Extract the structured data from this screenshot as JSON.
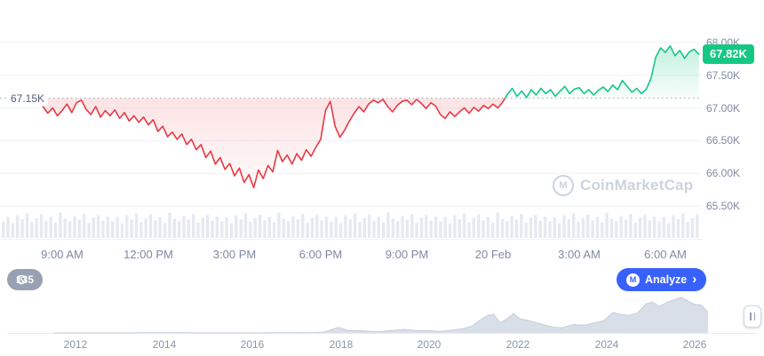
{
  "colors": {
    "up": "#16c784",
    "down": "#ea3943",
    "analyze_blue": "#3861fb",
    "axis_text": "#7f8aa0",
    "watermark_gray": "#ccd3de",
    "volume_bar": "#e5eaf1",
    "brush_fill": "#d9dfe9"
  },
  "icons": {
    "cmc_logo_letter": "M"
  },
  "price_chart": {
    "current_price_badge": "67.82K",
    "reference_price_label": "67.15K",
    "watermark_text": "CoinMarketCap"
  },
  "controls": {
    "history_badge": "135",
    "analyze_button": "Analyze",
    "analyze_chevron": "›"
  },
  "chart_data": [
    {
      "name": "intraday-price",
      "type": "line",
      "unit": "K USD",
      "reference_value": 67.15,
      "last_value": 67.82,
      "ylim": [
        65.5,
        68.0
      ],
      "grid": true,
      "y_ticks": [
        {
          "value": 68.0,
          "label": "68.00K"
        },
        {
          "value": 67.5,
          "label": "67.50K"
        },
        {
          "value": 67.0,
          "label": "67.00K"
        },
        {
          "value": 66.5,
          "label": "66.50K"
        },
        {
          "value": 66.0,
          "label": "66.00K"
        },
        {
          "value": 65.5,
          "label": "65.50K"
        }
      ],
      "x_ticks": [
        {
          "hour": 9,
          "label": "9:00 AM"
        },
        {
          "hour": 12,
          "label": "12:00 PM"
        },
        {
          "hour": 15,
          "label": "3:00 PM"
        },
        {
          "hour": 18,
          "label": "6:00 PM"
        },
        {
          "hour": 21,
          "label": "9:00 PM"
        },
        {
          "hour": 24,
          "label": "20 Feb"
        },
        {
          "hour": 27,
          "label": "3:00 AM"
        },
        {
          "hour": 30,
          "label": "6:00 AM"
        }
      ],
      "x_start_hour": 8.3333,
      "x_step_hours": 0.16667,
      "values": [
        67.02,
        66.92,
        67.0,
        66.88,
        66.96,
        67.06,
        66.93,
        67.08,
        67.12,
        66.98,
        66.9,
        67.02,
        66.86,
        66.96,
        66.88,
        66.97,
        66.84,
        66.93,
        66.8,
        66.88,
        66.78,
        66.86,
        66.74,
        66.82,
        66.64,
        66.72,
        66.56,
        66.63,
        66.52,
        66.6,
        66.44,
        66.52,
        66.36,
        66.44,
        66.24,
        66.34,
        66.14,
        66.24,
        66.06,
        66.15,
        65.96,
        66.08,
        65.86,
        65.98,
        65.78,
        66.05,
        65.92,
        66.12,
        66.02,
        66.35,
        66.18,
        66.28,
        66.14,
        66.3,
        66.2,
        66.36,
        66.26,
        66.4,
        66.52,
        66.96,
        67.1,
        66.72,
        66.55,
        66.66,
        66.8,
        66.92,
        67.02,
        66.94,
        67.06,
        67.12,
        67.08,
        67.13,
        67.02,
        66.94,
        67.04,
        67.1,
        67.12,
        67.05,
        67.13,
        67.07,
        66.99,
        67.08,
        67.03,
        66.9,
        66.84,
        66.94,
        66.87,
        66.94,
        67.0,
        66.92,
        67.01,
        66.95,
        67.04,
        66.99,
        67.06,
        67.0,
        67.09,
        67.21,
        67.3,
        67.18,
        67.26,
        67.16,
        67.28,
        67.2,
        67.3,
        67.22,
        67.28,
        67.18,
        67.26,
        67.33,
        67.22,
        67.29,
        67.31,
        67.22,
        67.28,
        67.2,
        67.27,
        67.32,
        67.25,
        67.35,
        67.28,
        67.42,
        67.33,
        67.24,
        67.3,
        67.22,
        67.29,
        67.45,
        67.78,
        67.92,
        67.85,
        67.95,
        67.8,
        67.88,
        67.76,
        67.86,
        67.9,
        67.82
      ],
      "volumes": [
        0.62,
        0.78,
        0.55,
        0.85,
        0.7,
        0.92,
        0.6,
        0.74,
        0.88,
        0.66,
        0.79,
        0.58,
        0.95,
        0.72,
        0.63,
        0.82,
        0.69,
        0.9,
        0.57,
        0.76,
        0.86,
        0.65,
        0.8
      ]
    },
    {
      "name": "history-brush",
      "type": "area",
      "unit": "K USD",
      "year_ticks": [
        "2012",
        "2014",
        "2016",
        "2018",
        "2020",
        "2022",
        "2024",
        "2026"
      ],
      "x_years": [
        2011.5,
        2012,
        2012.5,
        2013,
        2013.6,
        2013.95,
        2014.3,
        2014.8,
        2015.2,
        2015.7,
        2016.1,
        2016.5,
        2016.9,
        2017.3,
        2017.6,
        2017.95,
        2018.15,
        2018.5,
        2018.85,
        2019.1,
        2019.45,
        2019.7,
        2020.0,
        2020.25,
        2020.5,
        2020.75,
        2020.95,
        2021.1,
        2021.3,
        2021.45,
        2021.6,
        2021.75,
        2021.9,
        2022.05,
        2022.3,
        2022.55,
        2022.8,
        2023.0,
        2023.25,
        2023.5,
        2023.75,
        2023.95,
        2024.15,
        2024.3,
        2024.5,
        2024.7,
        2024.9,
        2025.05,
        2025.2,
        2025.4,
        2025.55,
        2025.7,
        2025.85,
        2026.0,
        2026.15,
        2026.3
      ],
      "values": [
        0.0,
        0.0,
        0.0,
        0.1,
        0.9,
        1.0,
        0.6,
        0.35,
        0.25,
        0.3,
        0.42,
        0.55,
        0.63,
        1.2,
        2.6,
        18.5,
        8.5,
        7.2,
        3.9,
        7.8,
        11.5,
        8.2,
        7.5,
        5.2,
        9.1,
        13.5,
        22,
        38,
        57,
        62,
        34,
        46,
        64,
        47,
        39,
        29,
        19,
        16.8,
        28,
        26,
        34,
        42,
        68,
        62,
        58,
        66,
        97,
        102,
        88,
        104,
        111,
        118,
        106,
        95,
        92,
        68
      ]
    }
  ]
}
